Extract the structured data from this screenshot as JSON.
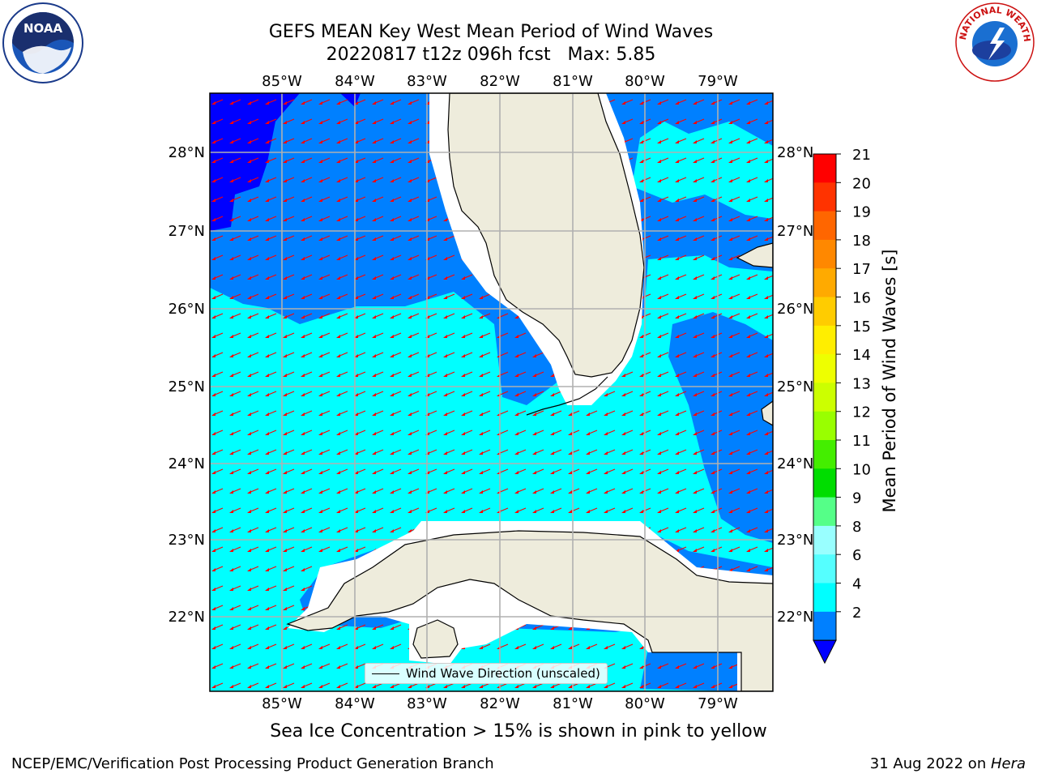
{
  "title": {
    "line1": "GEFS MEAN Key West Mean Period of Wind Waves",
    "line2": "20220817 t12z 096h fcst   Max: 5.85"
  },
  "map": {
    "lon_ticks": [
      "85°W",
      "84°W",
      "83°W",
      "82°W",
      "81°W",
      "80°W",
      "79°W"
    ],
    "lat_ticks": [
      "28°N",
      "27°N",
      "26°N",
      "25°N",
      "24°N",
      "23°N",
      "22°N"
    ],
    "colors": {
      "land": "#eeecdc",
      "ocean_2_4": "#0080ff",
      "ocean_4_6": "#00ffff",
      "ocean_lt2": "#0000ff",
      "arrows": "#ff0000",
      "grid": "#b0b0b0"
    },
    "legend_label": "Wind Wave Direction (unscaled)"
  },
  "colorbar": {
    "label": "Mean Period of Wind Waves [s]",
    "ticks": [
      "21",
      "20",
      "19",
      "18",
      "17",
      "16",
      "15",
      "14",
      "13",
      "12",
      "11",
      "10",
      "9",
      "8",
      "6",
      "4",
      "2"
    ],
    "colors": [
      "#ff0000",
      "#ff3300",
      "#ff6600",
      "#ff8800",
      "#ffaa00",
      "#ffcc00",
      "#ffee00",
      "#eeff00",
      "#ccff00",
      "#99ff00",
      "#44ee00",
      "#00dd00",
      "#55ff88",
      "#99ffff",
      "#55ffff",
      "#00ffff",
      "#0080ff"
    ]
  },
  "footer": {
    "note": "Sea Ice Concentration > 15% is shown in pink to yellow",
    "left": "NCEP/EMC/Verification Post Processing Product Generation Branch",
    "right_date": "31 Aug 2022 on ",
    "right_host": "Hera"
  },
  "logos": {
    "noaa": "NOAA",
    "nws_text": "NATIONAL WEATHER SERVICE"
  }
}
